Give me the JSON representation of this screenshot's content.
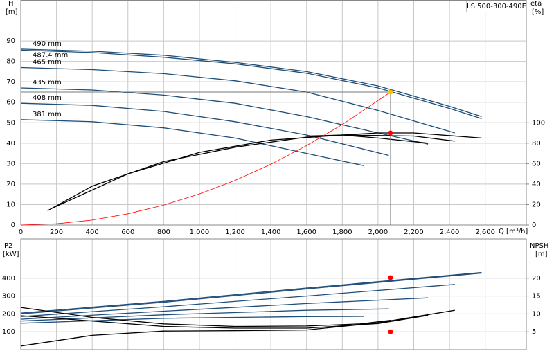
{
  "chart_data": [
    {
      "type": "line",
      "title": "LS 500-300-490E",
      "y_label": "H",
      "y_unit": "[m]",
      "y2_label": "eta",
      "y2_unit": "[%]",
      "x_label": "Q [m³/h]",
      "xlim": [
        0,
        2830
      ],
      "ylim": [
        0,
        110
      ],
      "y2lim": [
        0,
        220
      ],
      "grid": true,
      "xticks": [
        0,
        200,
        400,
        600,
        800,
        {
          "value": 1000,
          "label": "1,000"
        },
        {
          "value": 1200,
          "label": "1,200"
        },
        {
          "value": 1400,
          "label": "1,400"
        },
        {
          "value": 1600,
          "label": "1,600"
        },
        {
          "value": 1800,
          "label": "1,800"
        },
        {
          "value": 2000,
          "label": "2,000"
        },
        {
          "value": 2200,
          "label": "2,200"
        },
        {
          "value": 2400,
          "label": "2,400"
        },
        {
          "value": 2600,
          "label": "2,600"
        }
      ],
      "yticks": [
        0,
        10,
        20,
        30,
        40,
        50,
        60,
        70,
        80,
        90
      ],
      "y2ticks": [
        0,
        20,
        40,
        60,
        80,
        100
      ],
      "series": [
        {
          "name": "490 mm",
          "color": "#1f4e79",
          "x": [
            0,
            400,
            800,
            1200,
            1600,
            2000,
            2400,
            2580
          ],
          "values": [
            86,
            85,
            83,
            79.5,
            75,
            68,
            58,
            53
          ]
        },
        {
          "name": "487.4 mm",
          "color": "#1f4e79",
          "x": [
            0,
            400,
            800,
            1200,
            1600,
            2000,
            2400,
            2580
          ],
          "values": [
            85.5,
            84.3,
            82,
            78.8,
            74.2,
            67,
            57,
            52
          ]
        },
        {
          "name": "465 mm",
          "color": "#1f4e79",
          "x": [
            0,
            400,
            800,
            1200,
            1600,
            2000,
            2430
          ],
          "values": [
            77,
            76,
            74,
            70.5,
            65,
            56,
            45
          ]
        },
        {
          "name": "435 mm",
          "color": "#1f4e79",
          "x": [
            0,
            400,
            800,
            1200,
            1600,
            2000,
            2280
          ],
          "values": [
            67,
            66,
            63.5,
            59.5,
            53,
            45,
            39.5
          ]
        },
        {
          "name": "408 mm",
          "color": "#1f4e79",
          "x": [
            0,
            400,
            800,
            1200,
            1600,
            2060
          ],
          "values": [
            59.5,
            58.5,
            55.5,
            50.5,
            44,
            34
          ]
        },
        {
          "name": "381 mm",
          "color": "#1f4e79",
          "x": [
            0,
            400,
            800,
            1200,
            1600,
            1920
          ],
          "values": [
            51.5,
            50.5,
            47.5,
            42.5,
            35,
            29
          ]
        },
        {
          "color": "#000000",
          "axis": "y2",
          "x": [
            150,
            400,
            800,
            1200,
            1600,
            2000,
            2200,
            2580
          ],
          "values": [
            14,
            38,
            62,
            76,
            86,
            90,
            90,
            85
          ]
        },
        {
          "color": "#000000",
          "axis": "y2",
          "x": [
            170,
            600,
            1000,
            1400,
            1800,
            2200,
            2430
          ],
          "values": [
            16,
            50,
            71,
            83,
            88,
            87,
            82
          ]
        },
        {
          "color": "#000000",
          "axis": "y2",
          "x": [
            1600,
            1800,
            2000,
            2280
          ],
          "values": [
            87,
            88,
            85,
            80
          ]
        },
        {
          "color": "#ff0000",
          "x": [
            0,
            200,
            400,
            600,
            800,
            1000,
            1200,
            1400,
            1600,
            1800,
            2070
          ],
          "values": [
            0,
            0.6,
            2.4,
            5.5,
            9.7,
            15.2,
            21.8,
            29.7,
            38.8,
            49.1,
            65
          ]
        },
        {
          "color": "#ffc000",
          "marker": true,
          "crosshair": true,
          "x": [
            2070
          ],
          "values": [
            65
          ]
        },
        {
          "color": "#ff0000",
          "marker": true,
          "axis": "y2",
          "x": [
            2070
          ],
          "values": [
            90
          ]
        }
      ]
    },
    {
      "type": "line",
      "y_label": "P2",
      "y_unit": "[kW]",
      "y2_label": "NPSH",
      "y2_unit": "[m]",
      "xlim": [
        0,
        2830
      ],
      "ylim": [
        0,
        620
      ],
      "y2lim": [
        0,
        31
      ],
      "grid": true,
      "yticks": [
        100,
        200,
        300,
        400
      ],
      "y2ticks": [
        5,
        10,
        15,
        20
      ],
      "series": [
        {
          "color": "#1f4e79",
          "x": [
            0,
            800,
            1600,
            2580
          ],
          "values": [
            205,
            270,
            345,
            432
          ]
        },
        {
          "color": "#1f4e79",
          "x": [
            0,
            800,
            1600,
            2580
          ],
          "values": [
            200,
            265,
            340,
            428
          ]
        },
        {
          "color": "#1f4e79",
          "x": [
            0,
            800,
            1600,
            2430
          ],
          "values": [
            185,
            240,
            300,
            365
          ]
        },
        {
          "color": "#1f4e79",
          "x": [
            0,
            800,
            1600,
            2280
          ],
          "values": [
            170,
            215,
            258,
            290
          ]
        },
        {
          "color": "#1f4e79",
          "x": [
            0,
            800,
            1600,
            2060
          ],
          "values": [
            160,
            195,
            220,
            228
          ]
        },
        {
          "color": "#1f4e79",
          "x": [
            0,
            800,
            1600,
            1920
          ],
          "values": [
            148,
            175,
            185,
            186
          ]
        },
        {
          "color": "#000000",
          "axis": "y2",
          "x": [
            0,
            400,
            800,
            1200,
            1600,
            1900,
            2070
          ],
          "values": [
            11.8,
            9,
            7.2,
            6.5,
            6.6,
            7.2,
            8.2
          ]
        },
        {
          "color": "#000000",
          "axis": "y2",
          "x": [
            0,
            400,
            800,
            1200,
            1600,
            2000,
            2280
          ],
          "values": [
            9.5,
            8,
            6.5,
            6,
            6,
            7.3,
            9.6
          ]
        },
        {
          "color": "#000000",
          "axis": "y2",
          "x": [
            0,
            400,
            800,
            1200,
            1600,
            2000,
            2430
          ],
          "values": [
            1,
            4,
            5.2,
            5.3,
            5.5,
            7.5,
            11
          ]
        },
        {
          "color": "#ff0000",
          "marker": true,
          "x": [
            2070
          ],
          "values": [
            403
          ]
        },
        {
          "color": "#ff0000",
          "marker": true,
          "axis": "y2",
          "x": [
            2070
          ],
          "values": [
            5
          ]
        }
      ]
    }
  ]
}
